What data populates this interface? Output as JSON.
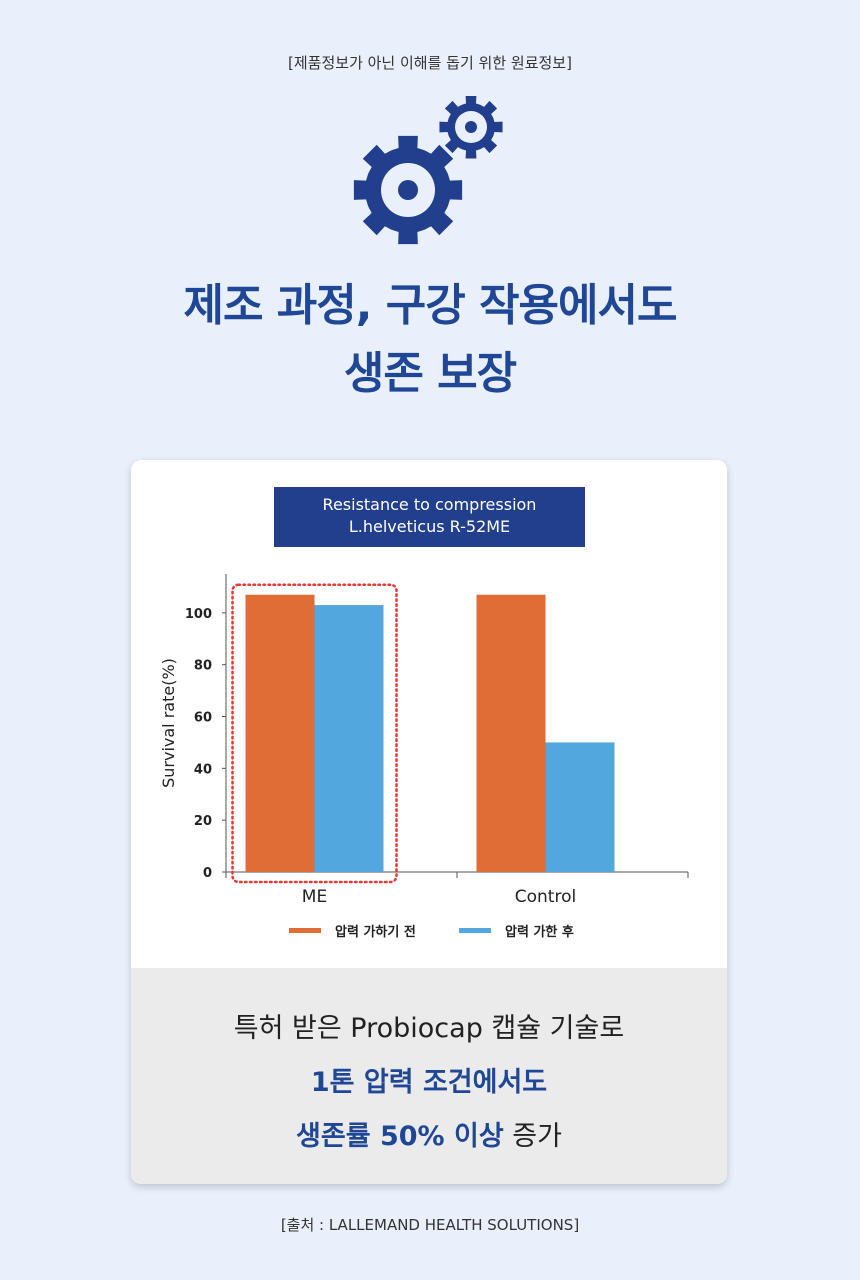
{
  "disclaimer": "[제품정보가 아닌 이해를 돕기 위한 원료정보]",
  "icon": "gears-icon",
  "headline": {
    "line1": "제조 과정, 구강 작용에서도",
    "line2": "생존 보장"
  },
  "chart_data": {
    "type": "bar",
    "title": [
      "Resistance to compression",
      "L.helveticus R-52ME"
    ],
    "categories": [
      "ME",
      "Control"
    ],
    "series": [
      {
        "name": "압력 가하기 전",
        "color": "#e06c36",
        "values": [
          107,
          107
        ]
      },
      {
        "name": "압력 가한 후",
        "color": "#52a8de",
        "values": [
          103,
          50
        ]
      }
    ],
    "ylabel": "Survival rate(%)",
    "xlabel": "",
    "ylim": [
      0,
      115
    ],
    "yticks": [
      0,
      20,
      40,
      60,
      80,
      100
    ],
    "grid": false,
    "legend": "bottom",
    "highlight": {
      "category": "ME",
      "style": "red dotted rectangle",
      "color": "#e53935"
    }
  },
  "summary": {
    "line1": "특허 받은 Probiocap 캡슐 기술로",
    "line2": "1톤 압력 조건에서도",
    "line3_bold": "생존률 50% 이상",
    "line3_tail": " 증가"
  },
  "source": "[출처 : LALLEMAND HEALTH SOLUTIONS]"
}
